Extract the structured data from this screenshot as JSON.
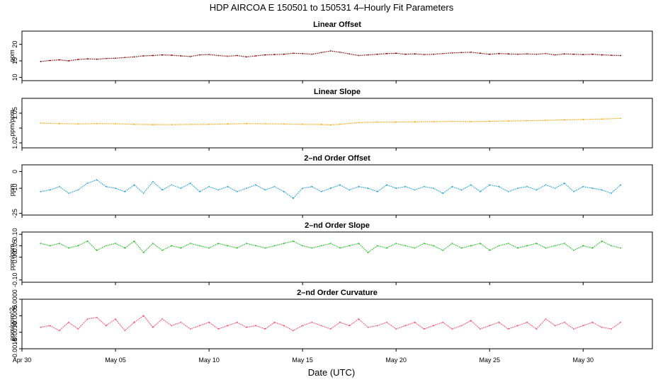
{
  "figure": {
    "title": "HDP   AIRCOA E   150501 to 150531   4–Hourly Fit Parameters",
    "xlabel": "Date (UTC)",
    "x_tick_labels": [
      "Apr 30",
      "May 05",
      "May 10",
      "May 15",
      "May 20",
      "May 25",
      "May 30"
    ]
  },
  "chart_data": [
    {
      "type": "line",
      "title": "Linear Offset",
      "ylabel": "ppm",
      "ylim": [
        9,
        24
      ],
      "yticks": [
        10,
        15,
        20
      ],
      "ytick_labels": [
        "10",
        "15",
        "20"
      ],
      "xlim": [
        0,
        33.7
      ],
      "x_day_ticks": [
        0,
        5,
        10,
        15,
        20,
        25,
        30
      ],
      "color": "#8b0000",
      "series": [
        {
          "name": "Linear Offset",
          "x": [
            1.0,
            1.5,
            2.0,
            2.5,
            3.0,
            3.5,
            4.0,
            4.5,
            5.0,
            5.5,
            6.0,
            6.5,
            7.0,
            7.5,
            8.0,
            8.5,
            9.0,
            9.5,
            10.0,
            10.5,
            11.0,
            11.5,
            12.0,
            12.5,
            13.0,
            13.5,
            14.0,
            14.5,
            15.0,
            15.5,
            16.0,
            16.5,
            17.0,
            17.5,
            18.0,
            18.5,
            19.0,
            19.5,
            20.0,
            20.5,
            21.0,
            21.5,
            22.0,
            22.5,
            23.0,
            23.5,
            24.0,
            24.5,
            25.0,
            25.5,
            26.0,
            26.5,
            27.0,
            27.5,
            28.0,
            28.5,
            29.0,
            29.5,
            30.0,
            30.5,
            31.0,
            31.5,
            32.0
          ],
          "values": [
            14.8,
            15.1,
            15.3,
            15.0,
            15.4,
            15.6,
            15.5,
            15.7,
            15.8,
            16.0,
            16.2,
            16.5,
            16.6,
            16.8,
            16.7,
            16.5,
            16.3,
            16.8,
            16.9,
            16.6,
            16.4,
            16.6,
            16.2,
            16.5,
            16.8,
            16.9,
            17.0,
            17.3,
            17.2,
            17.0,
            17.5,
            18.0,
            17.6,
            17.1,
            16.6,
            16.8,
            17.0,
            17.2,
            17.3,
            17.0,
            17.1,
            16.9,
            17.0,
            17.2,
            17.4,
            17.5,
            17.6,
            17.3,
            17.0,
            17.2,
            17.1,
            17.0,
            17.1,
            17.0,
            17.2,
            16.8,
            17.1,
            17.0,
            16.9,
            17.0,
            16.8,
            16.7,
            16.6
          ]
        }
      ]
    },
    {
      "type": "line",
      "title": "Linear Slope",
      "ylabel": "ppm/ppm",
      "ylim": [
        1.015,
        1.065
      ],
      "yticks": [
        1.02,
        1.035,
        1.05
      ],
      "ytick_labels": [
        "1.02",
        "",
        "1.05"
      ],
      "xlim": [
        0,
        33.7
      ],
      "x_day_ticks": [
        0,
        5,
        10,
        15,
        20,
        25,
        30
      ],
      "color": "#ffa500",
      "series": [
        {
          "name": "Linear Slope",
          "x": [
            1.0,
            2.0,
            3.0,
            4.0,
            5.0,
            6.0,
            7.0,
            8.0,
            9.0,
            10.0,
            11.0,
            12.0,
            13.0,
            14.0,
            15.0,
            16.0,
            16.5,
            17.0,
            18.0,
            19.0,
            20.0,
            21.0,
            22.0,
            23.0,
            24.0,
            25.0,
            26.0,
            27.0,
            28.0,
            29.0,
            30.0,
            31.0,
            32.0
          ],
          "values": [
            1.04,
            1.0395,
            1.0392,
            1.0395,
            1.0393,
            1.0388,
            1.0385,
            1.0384,
            1.0387,
            1.0388,
            1.0391,
            1.0395,
            1.0393,
            1.039,
            1.0388,
            1.0386,
            1.0382,
            1.0388,
            1.0405,
            1.041,
            1.0411,
            1.0412,
            1.0415,
            1.0418,
            1.0415,
            1.0418,
            1.0421,
            1.0424,
            1.0428,
            1.0432,
            1.0437,
            1.0441,
            1.0448
          ]
        }
      ]
    },
    {
      "type": "line",
      "title": "2–nd Order Offset",
      "ylabel": "ppm",
      "ylim": [
        -26,
        4
      ],
      "yticks": [
        -25,
        -10,
        0
      ],
      "ytick_labels": [
        "-25",
        "-10",
        "0"
      ],
      "xlim": [
        0,
        33.7
      ],
      "x_day_ticks": [
        0,
        5,
        10,
        15,
        20,
        25,
        30
      ],
      "color": "#1e9fe0",
      "series": [
        {
          "name": "2-nd Order Offset",
          "x": [
            1.0,
            1.5,
            2.0,
            2.5,
            3.0,
            3.5,
            4.0,
            4.5,
            5.0,
            5.5,
            6.0,
            6.5,
            7.0,
            7.5,
            8.0,
            8.5,
            9.0,
            9.5,
            10.0,
            10.5,
            11.0,
            11.5,
            12.0,
            12.5,
            13.0,
            13.5,
            14.0,
            14.5,
            15.0,
            15.5,
            16.0,
            16.5,
            17.0,
            17.5,
            18.0,
            18.5,
            19.0,
            19.5,
            20.0,
            20.5,
            21.0,
            21.5,
            22.0,
            22.5,
            23.0,
            23.5,
            24.0,
            24.5,
            25.0,
            25.5,
            26.0,
            26.5,
            27.0,
            27.5,
            28.0,
            28.5,
            29.0,
            29.5,
            30.0,
            30.5,
            31.0,
            31.5,
            32.0
          ],
          "values": [
            -12,
            -11,
            -9,
            -13,
            -11,
            -7,
            -5,
            -9,
            -10,
            -12,
            -8,
            -13,
            -6,
            -11,
            -8,
            -10,
            -7,
            -12,
            -9,
            -11,
            -9,
            -12,
            -10,
            -8,
            -11,
            -9,
            -12,
            -16,
            -10,
            -9,
            -12,
            -10,
            -8,
            -11,
            -9,
            -10,
            -12,
            -8,
            -10,
            -9,
            -11,
            -9,
            -10,
            -13,
            -9,
            -11,
            -8,
            -12,
            -8,
            -9,
            -12,
            -10,
            -9,
            -11,
            -8,
            -10,
            -7,
            -12,
            -9,
            -10,
            -11,
            -13,
            -8
          ]
        }
      ]
    },
    {
      "type": "line",
      "title": "2–nd Order Slope",
      "ylabel": "ppm/ppm",
      "ylim": [
        -0.11,
        0.11
      ],
      "yticks": [
        -0.1,
        0.0,
        0.05,
        0.1
      ],
      "ytick_labels": [
        "-0.10",
        "0.00",
        "0.05",
        "0.10"
      ],
      "xlim": [
        0,
        33.7
      ],
      "x_day_ticks": [
        0,
        5,
        10,
        15,
        20,
        25,
        30
      ],
      "color": "#1fbf1f",
      "series": [
        {
          "name": "2-nd Order Slope",
          "x": [
            1.0,
            1.5,
            2.0,
            2.5,
            3.0,
            3.5,
            4.0,
            4.5,
            5.0,
            5.5,
            6.0,
            6.5,
            7.0,
            7.5,
            8.0,
            8.5,
            9.0,
            9.5,
            10.0,
            10.5,
            11.0,
            11.5,
            12.0,
            12.5,
            13.0,
            13.5,
            14.0,
            14.5,
            15.0,
            15.5,
            16.0,
            16.5,
            17.0,
            17.5,
            18.0,
            18.5,
            19.0,
            19.5,
            20.0,
            20.5,
            21.0,
            21.5,
            22.0,
            22.5,
            23.0,
            23.5,
            24.0,
            24.5,
            25.0,
            25.5,
            26.0,
            26.5,
            27.0,
            27.5,
            28.0,
            28.5,
            29.0,
            29.5,
            30.0,
            30.5,
            31.0,
            31.5,
            32.0
          ],
          "values": [
            0.06,
            0.05,
            0.06,
            0.04,
            0.05,
            0.07,
            0.03,
            0.05,
            0.06,
            0.04,
            0.07,
            0.02,
            0.06,
            0.03,
            0.05,
            0.04,
            0.06,
            0.05,
            0.04,
            0.06,
            0.05,
            0.04,
            0.06,
            0.05,
            0.04,
            0.05,
            0.06,
            0.07,
            0.05,
            0.04,
            0.05,
            0.06,
            0.04,
            0.05,
            0.06,
            0.02,
            0.05,
            0.04,
            0.06,
            0.05,
            0.04,
            0.06,
            0.05,
            0.03,
            0.06,
            0.04,
            0.05,
            0.06,
            0.03,
            0.05,
            0.06,
            0.04,
            0.05,
            0.06,
            0.04,
            0.05,
            0.06,
            0.03,
            0.05,
            0.04,
            0.07,
            0.05,
            0.04
          ]
        }
      ]
    },
    {
      "type": "line",
      "title": "2–nd Order Curvature",
      "ylabel": "ppm/ppm^2",
      "ylim": [
        -0.0015,
        0.0
      ],
      "yticks": [
        -0.0015,
        -0.001,
        -0.0005,
        0.0
      ],
      "ytick_labels": [
        "-0.0015",
        "-0.0010",
        "-0.0005",
        "0.0000"
      ],
      "xlim": [
        0,
        33.7
      ],
      "x_day_ticks": [
        0,
        5,
        10,
        15,
        20,
        25,
        30
      ],
      "color": "#ff4466",
      "series": [
        {
          "name": "2-nd Order Curvature",
          "x": [
            1.0,
            1.5,
            2.0,
            2.5,
            3.0,
            3.5,
            4.0,
            4.5,
            5.0,
            5.5,
            6.0,
            6.5,
            7.0,
            7.5,
            8.0,
            8.5,
            9.0,
            9.5,
            10.0,
            10.5,
            11.0,
            11.5,
            12.0,
            12.5,
            13.0,
            13.5,
            14.0,
            14.5,
            15.0,
            15.5,
            16.0,
            16.5,
            17.0,
            17.5,
            18.0,
            18.5,
            19.0,
            19.5,
            20.0,
            20.5,
            21.0,
            21.5,
            22.0,
            22.5,
            23.0,
            23.5,
            24.0,
            24.5,
            25.0,
            25.5,
            26.0,
            26.5,
            27.0,
            27.5,
            28.0,
            28.5,
            29.0,
            29.5,
            30.0,
            30.5,
            31.0,
            31.5,
            32.0
          ],
          "values": [
            -0.00085,
            -0.0008,
            -0.00095,
            -0.0007,
            -0.0009,
            -0.0006,
            -0.00055,
            -0.0008,
            -0.0006,
            -0.00095,
            -0.0007,
            -0.0005,
            -0.00085,
            -0.0006,
            -0.0008,
            -0.0007,
            -0.0009,
            -0.0008,
            -0.0007,
            -0.0009,
            -0.0008,
            -0.0007,
            -0.00085,
            -0.0008,
            -0.0009,
            -0.0007,
            -0.0008,
            -0.00095,
            -0.0008,
            -0.0007,
            -0.0008,
            -0.0009,
            -0.0007,
            -0.0008,
            -0.0006,
            -0.00085,
            -0.0008,
            -0.0007,
            -0.0009,
            -0.0008,
            -0.0007,
            -0.0009,
            -0.0008,
            -0.0007,
            -0.0009,
            -0.0008,
            -0.00065,
            -0.0009,
            -0.0008,
            -0.0007,
            -0.0009,
            -0.0008,
            -0.0007,
            -0.0009,
            -0.0006,
            -0.0008,
            -0.0007,
            -0.0009,
            -0.0008,
            -0.0007,
            -0.00085,
            -0.0009,
            -0.0007
          ]
        }
      ]
    }
  ]
}
